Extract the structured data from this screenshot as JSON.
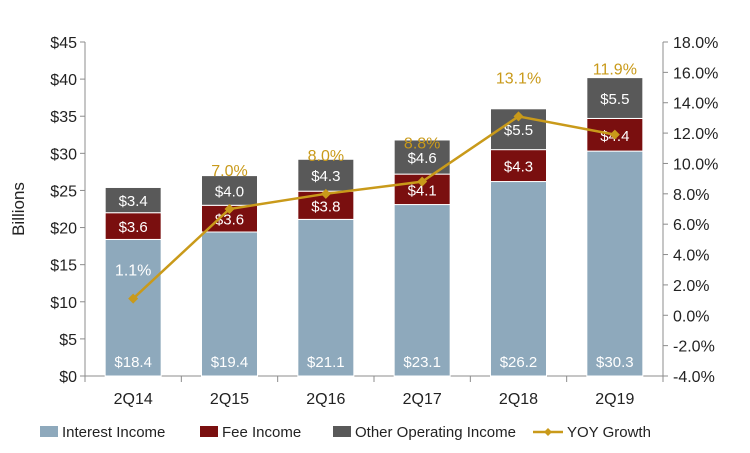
{
  "chart_data": {
    "type": "bar",
    "stacked": true,
    "title": "",
    "xlabel": "",
    "ylabel": "Billions",
    "ylim": [
      0,
      45
    ],
    "y2lim": [
      -4.0,
      18.0
    ],
    "categories": [
      "2Q14",
      "2Q15",
      "2Q16",
      "2Q17",
      "2Q18",
      "2Q19"
    ],
    "series": [
      {
        "name": "Interest Income",
        "color": "#8EA9BC",
        "labels": [
          "$18.4",
          "$19.4",
          "$21.1",
          "$23.1",
          "$26.2",
          "$30.3"
        ],
        "values": [
          18.4,
          19.4,
          21.1,
          23.1,
          26.2,
          30.3
        ]
      },
      {
        "name": "Fee Income",
        "color": "#7A0F0F",
        "labels": [
          "$3.6",
          "$3.6",
          "$3.8",
          "$4.1",
          "$4.3",
          "$4.4"
        ],
        "values": [
          3.6,
          3.6,
          3.8,
          4.1,
          4.3,
          4.4
        ]
      },
      {
        "name": "Other Operating Income",
        "color": "#595959",
        "labels": [
          "$3.4",
          "$4.0",
          "$4.3",
          "$4.6",
          "$5.5",
          "$5.5"
        ],
        "values": [
          3.4,
          4.0,
          4.3,
          4.6,
          5.5,
          5.5
        ]
      }
    ],
    "line_series": {
      "name": "YOY Growth",
      "color": "#C99A1A",
      "labels": [
        "1.1%",
        "7.0%",
        "8.0%",
        "8.8%",
        "13.1%",
        "11.9%"
      ],
      "values": [
        1.1,
        7.0,
        8.0,
        8.8,
        13.1,
        11.9
      ]
    },
    "y_ticks": [
      "$0",
      "$5",
      "$10",
      "$15",
      "$20",
      "$25",
      "$30",
      "$35",
      "$40",
      "$45"
    ],
    "y2_ticks": [
      "-4.0%",
      "-2.0%",
      "0.0%",
      "2.0%",
      "4.0%",
      "6.0%",
      "8.0%",
      "10.0%",
      "12.0%",
      "14.0%",
      "16.0%",
      "18.0%"
    ],
    "legend": [
      "Interest Income",
      "Fee Income",
      "Other Operating Income",
      "YOY Growth"
    ],
    "legend_position": "bottom"
  }
}
